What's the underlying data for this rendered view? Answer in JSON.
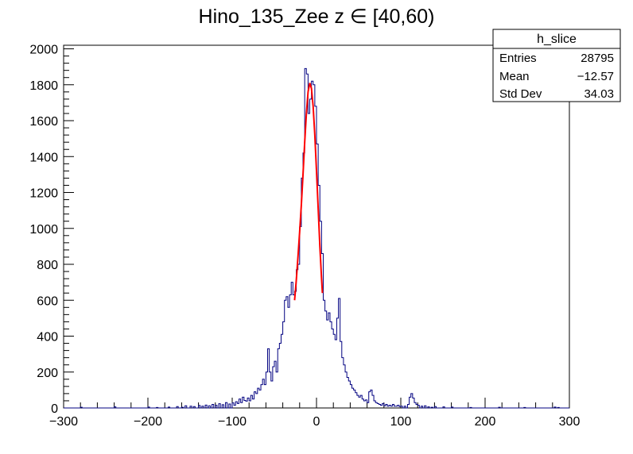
{
  "chart_data": {
    "type": "histogram",
    "title": "Hino_135_Zee z  ∈ [40,60)",
    "xlabel": "",
    "ylabel": "",
    "xlim": [
      -300,
      300
    ],
    "ylim": [
      0,
      2020
    ],
    "x_ticks": [
      -300,
      -200,
      -100,
      0,
      100,
      200,
      300
    ],
    "y_ticks": [
      0,
      200,
      400,
      600,
      800,
      1000,
      1200,
      1400,
      1600,
      1800,
      2000
    ],
    "x_tick_labels": [
      "−300",
      "−200",
      "−100",
      "0",
      "100",
      "200",
      "300"
    ],
    "y_tick_labels": [
      "0",
      "200",
      "400",
      "600",
      "800",
      "1000",
      "1200",
      "1400",
      "1600",
      "1800",
      "2000"
    ],
    "grid": false,
    "bin_width": 2,
    "series": [
      {
        "color": "#000080",
        "style": "step",
        "bins": [
          [
            -280,
            4
          ],
          [
            -240,
            6
          ],
          [
            -200,
            5
          ],
          [
            -190,
            3
          ],
          [
            -176,
            5
          ],
          [
            -166,
            8
          ],
          [
            -160,
            4
          ],
          [
            -156,
            12
          ],
          [
            -150,
            10
          ],
          [
            -146,
            8
          ],
          [
            -140,
            14
          ],
          [
            -136,
            10
          ],
          [
            -132,
            16
          ],
          [
            -128,
            12
          ],
          [
            -124,
            20
          ],
          [
            -120,
            15
          ],
          [
            -116,
            24
          ],
          [
            -112,
            18
          ],
          [
            -108,
            30
          ],
          [
            -104,
            22
          ],
          [
            -100,
            28
          ],
          [
            -98,
            15
          ],
          [
            -96,
            35
          ],
          [
            -94,
            25
          ],
          [
            -92,
            50
          ],
          [
            -90,
            30
          ],
          [
            -88,
            60
          ],
          [
            -86,
            42
          ],
          [
            -84,
            38
          ],
          [
            -82,
            55
          ],
          [
            -80,
            40
          ],
          [
            -78,
            70
          ],
          [
            -76,
            50
          ],
          [
            -74,
            90
          ],
          [
            -72,
            80
          ],
          [
            -70,
            110
          ],
          [
            -68,
            100
          ],
          [
            -66,
            130
          ],
          [
            -64,
            160
          ],
          [
            -62,
            130
          ],
          [
            -60,
            200
          ],
          [
            -58,
            330
          ],
          [
            -56,
            200
          ],
          [
            -54,
            150
          ],
          [
            -52,
            230
          ],
          [
            -50,
            260
          ],
          [
            -48,
            200
          ],
          [
            -46,
            330
          ],
          [
            -44,
            360
          ],
          [
            -42,
            410
          ],
          [
            -40,
            480
          ],
          [
            -38,
            600
          ],
          [
            -36,
            620
          ],
          [
            -34,
            560
          ],
          [
            -32,
            630
          ],
          [
            -30,
            700
          ],
          [
            -28,
            630
          ],
          [
            -26,
            650
          ],
          [
            -24,
            770
          ],
          [
            -22,
            800
          ],
          [
            -20,
            1010
          ],
          [
            -18,
            1280
          ],
          [
            -16,
            1420
          ],
          [
            -14,
            1890
          ],
          [
            -12,
            1860
          ],
          [
            -10,
            1640
          ],
          [
            -8,
            1720
          ],
          [
            -6,
            1820
          ],
          [
            -4,
            1800
          ],
          [
            -2,
            1680
          ],
          [
            0,
            1470
          ],
          [
            2,
            1240
          ],
          [
            4,
            1040
          ],
          [
            6,
            860
          ],
          [
            8,
            600
          ],
          [
            10,
            540
          ],
          [
            12,
            490
          ],
          [
            14,
            530
          ],
          [
            16,
            480
          ],
          [
            18,
            440
          ],
          [
            20,
            410
          ],
          [
            22,
            380
          ],
          [
            24,
            500
          ],
          [
            26,
            610
          ],
          [
            28,
            370
          ],
          [
            30,
            280
          ],
          [
            32,
            240
          ],
          [
            34,
            200
          ],
          [
            36,
            170
          ],
          [
            38,
            150
          ],
          [
            40,
            130
          ],
          [
            42,
            110
          ],
          [
            44,
            100
          ],
          [
            46,
            85
          ],
          [
            48,
            70
          ],
          [
            50,
            60
          ],
          [
            52,
            70
          ],
          [
            54,
            50
          ],
          [
            56,
            40
          ],
          [
            58,
            45
          ],
          [
            60,
            30
          ],
          [
            62,
            90
          ],
          [
            64,
            100
          ],
          [
            66,
            70
          ],
          [
            68,
            40
          ],
          [
            70,
            30
          ],
          [
            72,
            25
          ],
          [
            74,
            20
          ],
          [
            76,
            15
          ],
          [
            78,
            25
          ],
          [
            80,
            12
          ],
          [
            82,
            20
          ],
          [
            84,
            10
          ],
          [
            86,
            15
          ],
          [
            88,
            10
          ],
          [
            90,
            20
          ],
          [
            92,
            10
          ],
          [
            94,
            10
          ],
          [
            96,
            15
          ],
          [
            98,
            8
          ],
          [
            100,
            10
          ],
          [
            104,
            10
          ],
          [
            108,
            20
          ],
          [
            110,
            60
          ],
          [
            112,
            80
          ],
          [
            114,
            55
          ],
          [
            116,
            30
          ],
          [
            118,
            20
          ],
          [
            120,
            15
          ],
          [
            124,
            10
          ],
          [
            128,
            12
          ],
          [
            132,
            6
          ],
          [
            136,
            4
          ],
          [
            140,
            8
          ],
          [
            150,
            6
          ],
          [
            160,
            5
          ],
          [
            182,
            3
          ],
          [
            216,
            4
          ],
          [
            246,
            3
          ],
          [
            282,
            5
          ],
          [
            286,
            3
          ]
        ]
      },
      {
        "color": "#ff0000",
        "style": "line",
        "points": [
          [
            -26,
            600
          ],
          [
            -24,
            710
          ],
          [
            -22,
            840
          ],
          [
            -20,
            980
          ],
          [
            -18,
            1130
          ],
          [
            -16,
            1300
          ],
          [
            -14,
            1480
          ],
          [
            -12,
            1640
          ],
          [
            -10,
            1760
          ],
          [
            -8,
            1810
          ],
          [
            -6,
            1780
          ],
          [
            -4,
            1680
          ],
          [
            -2,
            1520
          ],
          [
            0,
            1320
          ],
          [
            2,
            1110
          ],
          [
            4,
            900
          ],
          [
            6,
            720
          ],
          [
            7,
            640
          ]
        ]
      }
    ],
    "stats_box": {
      "title": "h_slice",
      "rows": [
        {
          "label": "Entries",
          "value": "28795"
        },
        {
          "label": "Mean",
          "value": "−12.57"
        },
        {
          "label": "Std Dev",
          "value": "34.03"
        }
      ]
    }
  }
}
